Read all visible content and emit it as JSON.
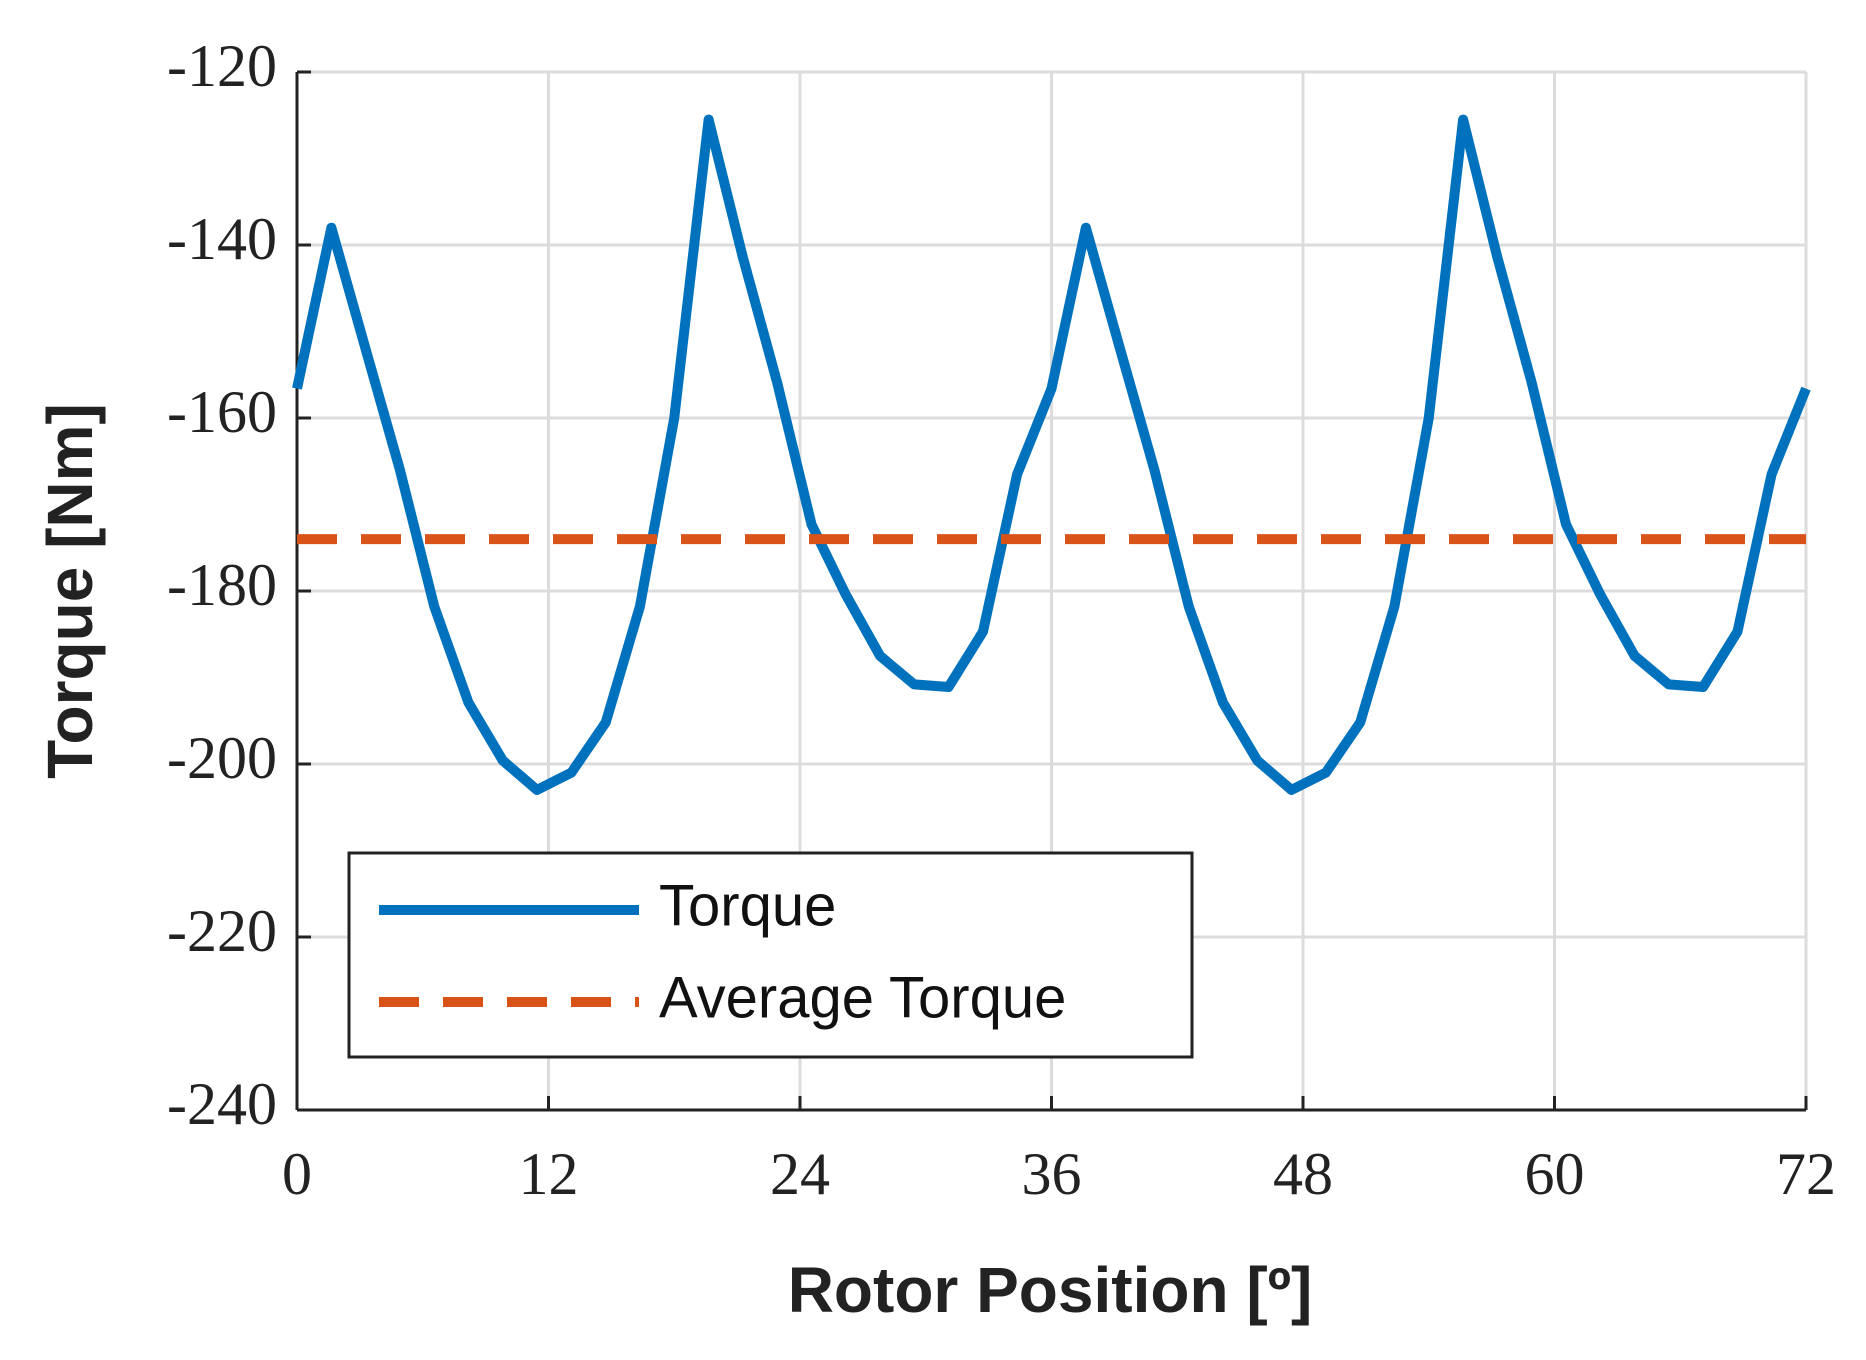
{
  "chart_data": {
    "type": "line",
    "xlabel": "Rotor Position [º]",
    "ylabel": "Torque [Nm]",
    "xlim": [
      0,
      72
    ],
    "xticks": [
      0,
      12,
      24,
      36,
      48,
      60,
      72
    ],
    "ylim": [
      -240,
      -120
    ],
    "yticks": [
      -240,
      -220,
      -200,
      -180,
      -160,
      -140,
      -120
    ],
    "grid": true,
    "legend": "lower left",
    "series": [
      {
        "name": "Torque",
        "color": "#0072bd",
        "dashed": false,
        "x": [
          0,
          1.64,
          3.27,
          4.91,
          6.55,
          8.18,
          9.82,
          11.45,
          13.09,
          14.73,
          16.36,
          18,
          19.64,
          21.27,
          22.91,
          24.55,
          26.18,
          27.82,
          29.45,
          31.09,
          32.73,
          34.36,
          36,
          37.64,
          39.27,
          40.91,
          42.55,
          44.18,
          45.82,
          47.45,
          49.09,
          50.73,
          52.36,
          54,
          55.64,
          57.27,
          58.91,
          60.55,
          62.18,
          63.82,
          65.45,
          67.09,
          68.73,
          70.36,
          72
        ],
        "values": [
          -156.6,
          -138,
          -152,
          -166,
          -181.8,
          -192.9,
          -199.6,
          -203,
          -201,
          -195.2,
          -181.8,
          -160,
          -125.5,
          -141.4,
          -155.9,
          -172.3,
          -180.4,
          -187.5,
          -190.8,
          -191.1,
          -184.7,
          -166.5,
          -156.6,
          -138,
          -152,
          -166,
          -181.8,
          -192.9,
          -199.6,
          -203,
          -201,
          -195.2,
          -181.8,
          -160,
          -125.5,
          -141.4,
          -155.9,
          -172.3,
          -180.4,
          -187.5,
          -190.8,
          -191.1,
          -184.7,
          -166.5,
          -156.6
        ]
      },
      {
        "name": "Average Torque",
        "color": "#d95319",
        "dashed": true,
        "x": [
          0,
          72
        ],
        "values": [
          -174,
          -174
        ]
      }
    ]
  }
}
